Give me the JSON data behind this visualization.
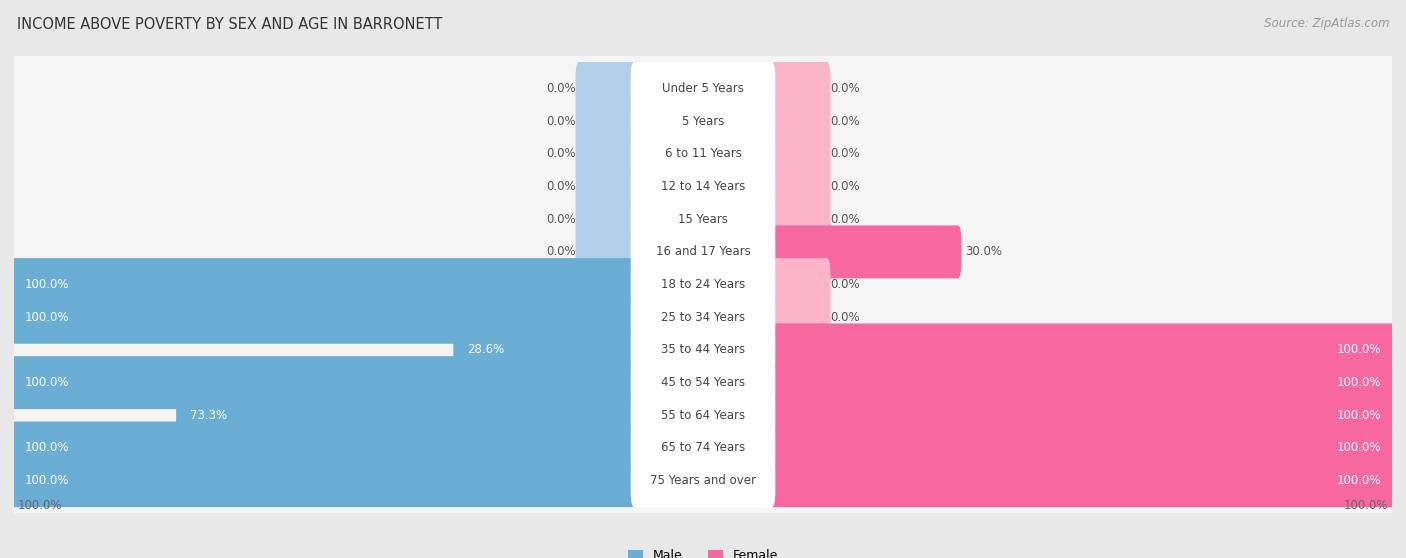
{
  "title": "INCOME ABOVE POVERTY BY SEX AND AGE IN BARRONETT",
  "source": "Source: ZipAtlas.com",
  "categories": [
    "Under 5 Years",
    "5 Years",
    "6 to 11 Years",
    "12 to 14 Years",
    "15 Years",
    "16 and 17 Years",
    "18 to 24 Years",
    "25 to 34 Years",
    "35 to 44 Years",
    "45 to 54 Years",
    "55 to 64 Years",
    "65 to 74 Years",
    "75 Years and over"
  ],
  "male": [
    0.0,
    0.0,
    0.0,
    0.0,
    0.0,
    0.0,
    100.0,
    100.0,
    28.6,
    100.0,
    73.3,
    100.0,
    100.0
  ],
  "female": [
    0.0,
    0.0,
    0.0,
    0.0,
    0.0,
    30.0,
    0.0,
    0.0,
    100.0,
    100.0,
    100.0,
    100.0,
    100.0
  ],
  "male_color": "#6aaed6",
  "female_color": "#f768a1",
  "male_stub_color": "#afd0e8",
  "female_stub_color": "#fbb4ca",
  "bg_color": "#e8e8e8",
  "row_bg": "#f5f5f5",
  "bar_center_bg": "#ffffff",
  "title_fontsize": 10.5,
  "label_fontsize": 8.5,
  "source_fontsize": 8.5,
  "legend_fontsize": 9,
  "stub_size": 8.0,
  "max_val": 100.0
}
